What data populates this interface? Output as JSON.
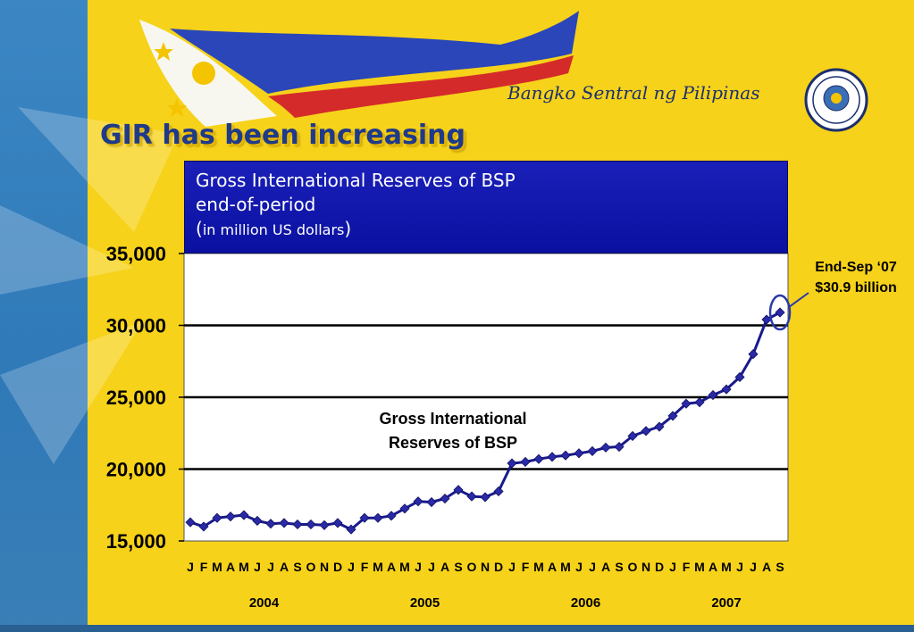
{
  "slide": {
    "title": "GIR has been increasing",
    "brand": "Bangko Sentral ng Pilipinas"
  },
  "colors": {
    "background": "#f6d21a",
    "side_band": "#3b86c3",
    "header_box": "#1015ad",
    "series_line": "#1a1a8c",
    "grid": "#000000"
  },
  "icons": [
    "philippine-flag-icon",
    "bsp-seal-icon"
  ],
  "chart_data": {
    "type": "line",
    "title_lines": [
      "Gross International Reserves of BSP",
      "end-of-period"
    ],
    "unit_text": "in million US dollars",
    "ylim": [
      15000,
      35000
    ],
    "y_ticks": [
      15000,
      20000,
      25000,
      30000,
      35000
    ],
    "y_tick_labels": [
      "15,000",
      "20,000",
      "25,000",
      "30,000",
      "35,000"
    ],
    "grid": true,
    "x_labels": [
      "J",
      "F",
      "M",
      "A",
      "M",
      "J",
      "J",
      "A",
      "S",
      "O",
      "N",
      "D",
      "J",
      "F",
      "M",
      "A",
      "M",
      "J",
      "J",
      "A",
      "S",
      "O",
      "N",
      "D",
      "J",
      "F",
      "M",
      "A",
      "M",
      "J",
      "J",
      "A",
      "S",
      "O",
      "N",
      "D",
      "J",
      "F",
      "M",
      "A",
      "M",
      "J",
      "J",
      "A",
      "S"
    ],
    "year_labels": [
      {
        "label": "2004",
        "center_index": 5.5
      },
      {
        "label": "2005",
        "center_index": 17.5
      },
      {
        "label": "2006",
        "center_index": 29.5
      },
      {
        "label": "2007",
        "center_index": 40
      }
    ],
    "series": [
      {
        "name": "Gross International Reserves of BSP",
        "name_lines": [
          "Gross International",
          "Reserves of BSP"
        ],
        "values": [
          16300,
          16000,
          16600,
          16700,
          16800,
          16400,
          16200,
          16250,
          16150,
          16150,
          16100,
          16250,
          15800,
          16600,
          16600,
          16750,
          17250,
          17750,
          17700,
          17950,
          18550,
          18100,
          18050,
          18450,
          20400,
          20500,
          20700,
          20850,
          20950,
          21100,
          21250,
          21500,
          21550,
          22300,
          22650,
          22950,
          23700,
          24550,
          24650,
          25150,
          25550,
          26400,
          28000,
          30400,
          30900
        ]
      }
    ],
    "annotation": {
      "lines": [
        "End-Sep ‘07",
        "$30.9 billion"
      ],
      "point_index": 44
    }
  }
}
